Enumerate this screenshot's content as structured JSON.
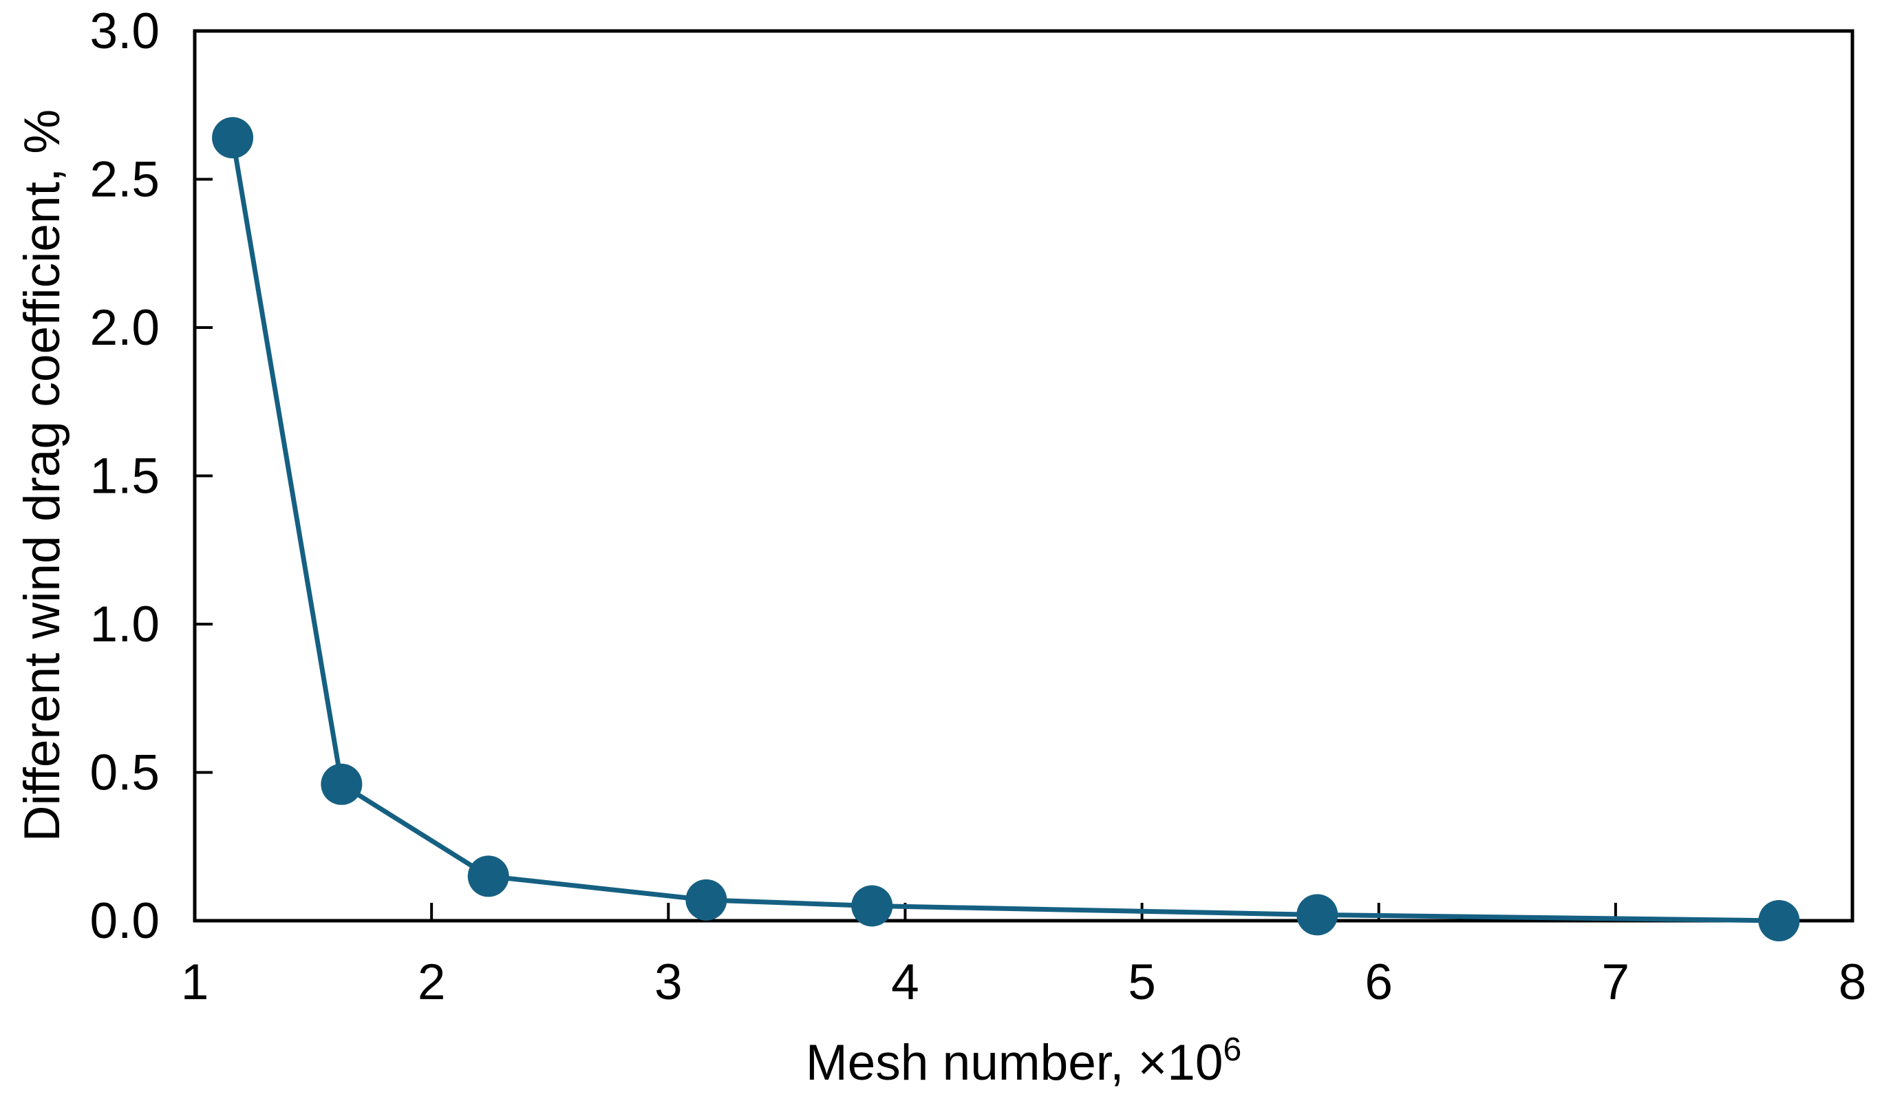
{
  "chart_data": {
    "type": "line",
    "title": "",
    "xlabel": "Mesh number, ×10⁶",
    "xlabel_main": "Mesh number, ×10",
    "xlabel_exponent": "6",
    "ylabel": "Different wind drag coefficient, %",
    "series": [
      {
        "x": [
          1.16,
          1.62,
          2.24,
          3.16,
          3.86,
          5.74,
          7.69
        ],
        "y": [
          2.64,
          0.46,
          0.15,
          0.07,
          0.05,
          0.02,
          0.0
        ]
      }
    ],
    "xlim": [
      1,
      8
    ],
    "ylim": [
      0,
      3
    ],
    "x_ticks": [
      1,
      2,
      3,
      4,
      5,
      6,
      7,
      8
    ],
    "x_tick_labels": [
      "1",
      "2",
      "3",
      "4",
      "5",
      "6",
      "7",
      "8"
    ],
    "y_ticks": [
      0,
      0.5,
      1,
      1.5,
      2,
      2.5,
      3
    ],
    "y_tick_labels": [
      "0.0",
      "0.5",
      "1.0",
      "1.5",
      "2.0",
      "2.5",
      "3.0"
    ],
    "grid": false,
    "legend": false,
    "marker": "circle",
    "colors": {
      "series": "#156082",
      "axis": "#000000",
      "text": "#000000",
      "background": "#ffffff"
    }
  }
}
